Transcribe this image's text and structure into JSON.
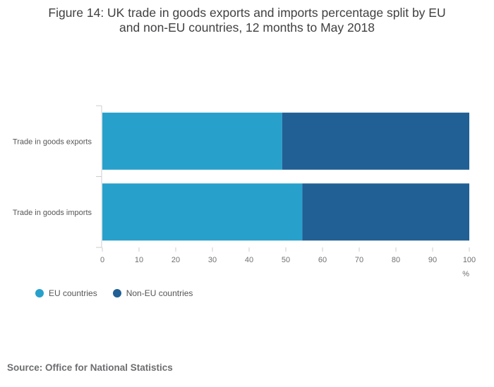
{
  "chart_data": {
    "type": "bar",
    "orientation": "horizontal",
    "stacked": "percent",
    "title_lines": [
      "Figure 14: UK trade in goods exports and imports percentage split by EU",
      "and non-EU countries, 12 months to May 2018"
    ],
    "categories": [
      "Trade in goods exports",
      "Trade in goods imports"
    ],
    "series": [
      {
        "name": "EU countries",
        "values": [
          49,
          54.5
        ],
        "color": "#27a0cc"
      },
      {
        "name": "Non-EU countries",
        "values": [
          51,
          45.5
        ],
        "color": "#206095"
      }
    ],
    "x_ticks": [
      "0",
      "10",
      "20",
      "30",
      "40",
      "50",
      "60",
      "70",
      "80",
      "90",
      "100"
    ],
    "xlim": [
      0,
      100
    ],
    "xlabel": "%",
    "grid": false,
    "legend_position": "bottom-left"
  },
  "source_text": "Source: Office for National Statistics"
}
